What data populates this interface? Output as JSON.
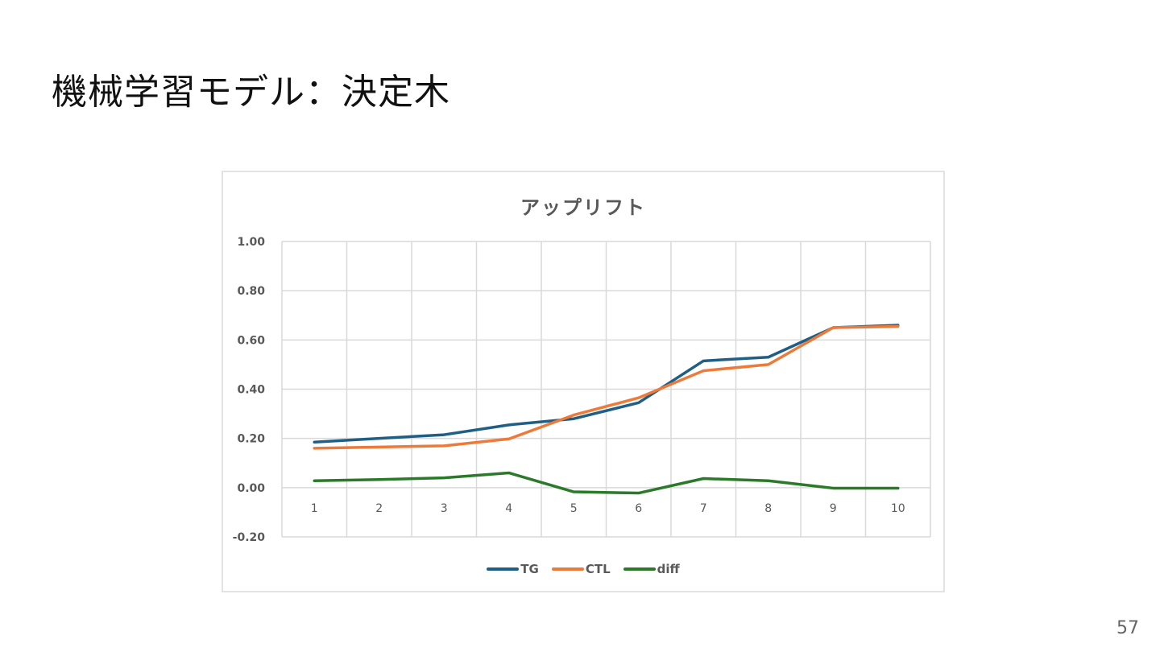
{
  "slide": {
    "title": "機械学習モデル：決定木",
    "page_number": "57"
  },
  "chart_data": {
    "type": "line",
    "title": "アップリフト",
    "xlabel": "",
    "ylabel": "",
    "categories": [
      "1",
      "2",
      "3",
      "4",
      "5",
      "6",
      "7",
      "8",
      "9",
      "10"
    ],
    "ylim": [
      -0.2,
      1.0
    ],
    "yticks": [
      "1.00",
      "0.80",
      "0.60",
      "0.40",
      "0.20",
      "0.00",
      "-0.20"
    ],
    "ytick_values": [
      1.0,
      0.8,
      0.6,
      0.4,
      0.2,
      0.0,
      -0.2
    ],
    "grid": true,
    "legend_position": "bottom",
    "series": [
      {
        "name": "TG",
        "color": "#1f5f86",
        "values": [
          0.185,
          0.2,
          0.215,
          0.255,
          0.28,
          0.345,
          0.515,
          0.53,
          0.65,
          0.66
        ]
      },
      {
        "name": "CTL",
        "color": "#ee7a3a",
        "values": [
          0.16,
          0.165,
          0.17,
          0.198,
          0.295,
          0.365,
          0.475,
          0.5,
          0.65,
          0.655
        ]
      },
      {
        "name": "diff",
        "color": "#2a7a2a",
        "values": [
          0.028,
          0.033,
          0.04,
          0.06,
          -0.017,
          -0.022,
          0.037,
          0.028,
          -0.002,
          -0.002
        ]
      }
    ]
  }
}
